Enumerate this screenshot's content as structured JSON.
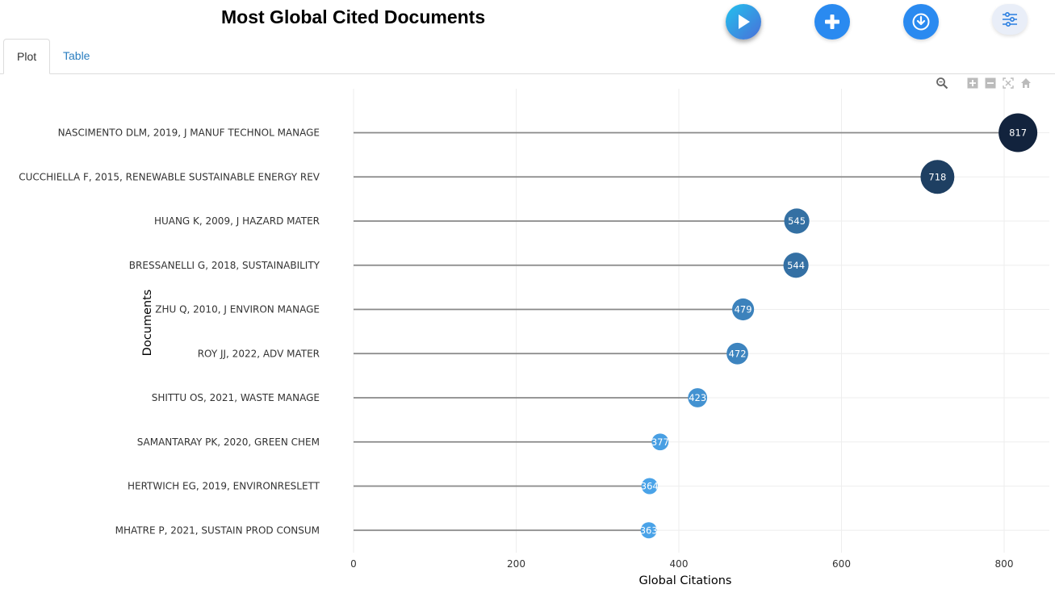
{
  "header": {
    "title": "Most Global Cited Documents",
    "buttons": {
      "play_icon": "play-icon",
      "add_icon": "plus-icon",
      "download_icon": "download-icon",
      "settings_icon": "sliders-icon"
    }
  },
  "tabs": [
    {
      "label": "Plot",
      "active": true
    },
    {
      "label": "Table",
      "active": false
    }
  ],
  "modebar": [
    "zoom-icon",
    "zoom-in-icon",
    "zoom-out-icon",
    "autoscale-icon",
    "reset-axes-icon"
  ],
  "chart_data": {
    "type": "scatter",
    "subtype": "lollipop",
    "xlabel": "Global Citations",
    "ylabel": "Documents",
    "xlim": [
      0,
      860
    ],
    "xticks": [
      0,
      200,
      400,
      600,
      800
    ],
    "grid": true,
    "categories": [
      "NASCIMENTO DLM, 2019, J MANUF TECHNOL MANAGE",
      "CUCCHIELLA F, 2015, RENEWABLE SUSTAINABLE ENERGY REV",
      "HUANG K, 2009, J HAZARD MATER",
      "BRESSANELLI G, 2018, SUSTAINABILITY",
      "ZHU Q, 2010, J ENVIRON MANAGE",
      "ROY JJ, 2022, ADV MATER",
      "SHITTU OS, 2021, WASTE MANAGE",
      "SAMANTARAY PK, 2020, GREEN CHEM",
      "HERTWICH EG, 2019, ENVIRONRESLETT",
      "MHATRE P, 2021, SUSTAIN PROD CONSUM"
    ],
    "values": [
      817,
      718,
      545,
      544,
      479,
      472,
      423,
      377,
      364,
      363
    ],
    "colors": {
      "stem": "#888888",
      "grid": "#eeeeee",
      "low": "#4aa3e8",
      "high": "#12233d"
    }
  }
}
